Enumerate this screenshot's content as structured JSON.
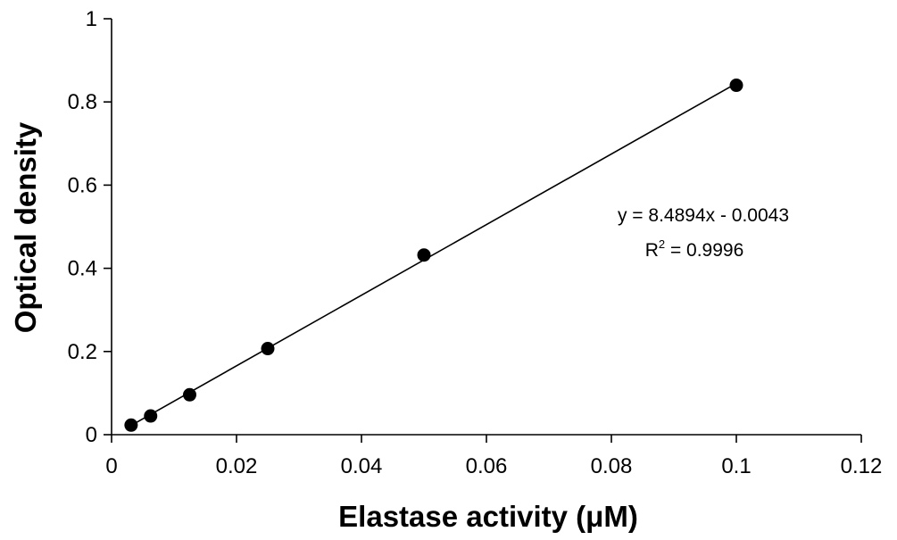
{
  "chart_data": {
    "type": "scatter",
    "xlabel": "Elastase activity (μM)",
    "ylabel": "Optical density",
    "xlim": [
      0,
      0.12
    ],
    "ylim": [
      0,
      1
    ],
    "xticks": [
      "0",
      "0.02",
      "0.04",
      "0.06",
      "0.08",
      "0.1",
      "0.12"
    ],
    "yticks": [
      "0",
      "0.2",
      "0.4",
      "0.6",
      "0.8",
      "1"
    ],
    "grid": false,
    "x": [
      0.003125,
      0.00625,
      0.0125,
      0.025,
      0.05,
      0.1
    ],
    "y": [
      0.023,
      0.045,
      0.096,
      0.207,
      0.432,
      0.84
    ],
    "trendline": {
      "slope": 8.4894,
      "intercept": -0.0043
    },
    "equation": "y = 8.4894x - 0.0043",
    "r2_label": "R",
    "r2_sup": "2",
    "r2_value": " = 0.9996"
  }
}
